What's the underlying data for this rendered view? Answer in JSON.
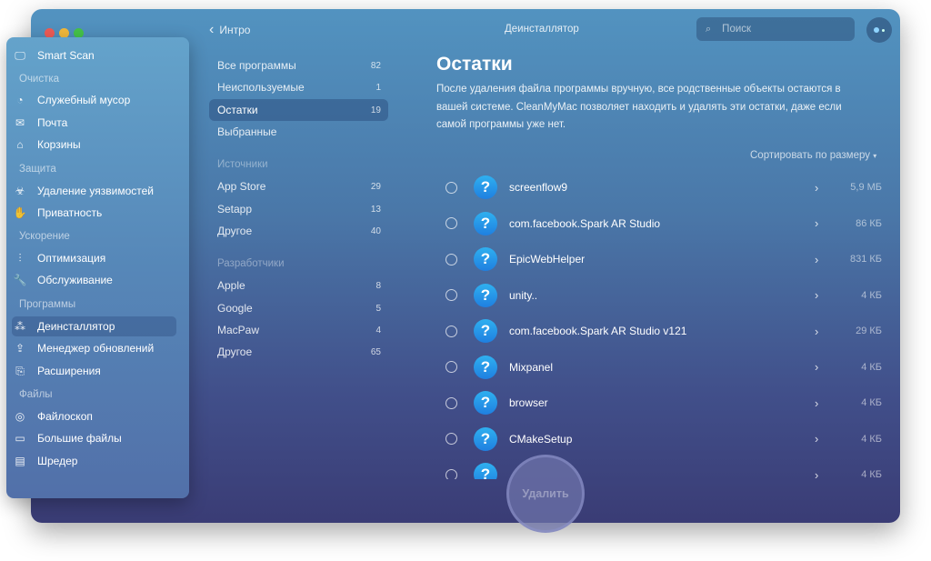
{
  "window": {
    "title": "Деинсталлятор",
    "back_label": "Интро",
    "search_placeholder": "Поиск"
  },
  "sidebar": {
    "smart_scan": "Smart Scan",
    "sections": [
      {
        "title": "Очистка",
        "items": [
          {
            "label": "Служебный мусор",
            "icon": "system-junk-icon"
          },
          {
            "label": "Почта",
            "icon": "mail-icon"
          },
          {
            "label": "Корзины",
            "icon": "trash-icon"
          }
        ]
      },
      {
        "title": "Защита",
        "items": [
          {
            "label": "Удаление уязвимостей",
            "icon": "biohazard-icon"
          },
          {
            "label": "Приватность",
            "icon": "hand-icon"
          }
        ]
      },
      {
        "title": "Ускорение",
        "items": [
          {
            "label": "Оптимизация",
            "icon": "sliders-icon"
          },
          {
            "label": "Обслуживание",
            "icon": "wrench-icon"
          }
        ]
      },
      {
        "title": "Программы",
        "items": [
          {
            "label": "Деинсталлятор",
            "icon": "uninstaller-icon",
            "selected": true
          },
          {
            "label": "Менеджер обновлений",
            "icon": "updater-icon"
          },
          {
            "label": "Расширения",
            "icon": "extensions-icon"
          }
        ]
      },
      {
        "title": "Файлы",
        "items": [
          {
            "label": "Файлоскоп",
            "icon": "space-lens-icon"
          },
          {
            "label": "Большие файлы",
            "icon": "folder-icon"
          },
          {
            "label": "Шредер",
            "icon": "shredder-icon"
          }
        ]
      }
    ]
  },
  "filters": {
    "main": [
      {
        "label": "Все программы",
        "count": "82"
      },
      {
        "label": "Неиспользуемые",
        "count": "1"
      },
      {
        "label": "Остатки",
        "count": "19",
        "selected": true
      },
      {
        "label": "Выбранные",
        "count": ""
      }
    ],
    "sources_title": "Источники",
    "sources": [
      {
        "label": "App Store",
        "count": "29"
      },
      {
        "label": "Setapp",
        "count": "13"
      },
      {
        "label": "Другое",
        "count": "40"
      }
    ],
    "developers_title": "Разработчики",
    "developers": [
      {
        "label": "Apple",
        "count": "8"
      },
      {
        "label": "Google",
        "count": "5"
      },
      {
        "label": "MacPaw",
        "count": "4"
      },
      {
        "label": "Другое",
        "count": "65"
      }
    ]
  },
  "content": {
    "title": "Остатки",
    "description": "После удаления файла программы вручную, все родственные объекты остаются в вашей системе. CleanMyMac позволяет находить и удалять эти остатки, даже если самой программы уже нет.",
    "sort_label": "Сортировать по размеру",
    "items": [
      {
        "name": "screenflow9",
        "size": "5,9 МБ"
      },
      {
        "name": "com.facebook.Spark AR Studio",
        "size": "86 КБ"
      },
      {
        "name": "EpicWebHelper",
        "size": "831 КБ"
      },
      {
        "name": "unity..",
        "size": "4 КБ"
      },
      {
        "name": "com.facebook.Spark AR Studio v121",
        "size": "29 КБ"
      },
      {
        "name": "Mixpanel",
        "size": "4 КБ"
      },
      {
        "name": "browser",
        "size": "4 КБ"
      },
      {
        "name": "CMakeSetup",
        "size": "4 КБ"
      },
      {
        "name": "",
        "size": "4 КБ"
      }
    ],
    "delete_label": "Удалить"
  }
}
